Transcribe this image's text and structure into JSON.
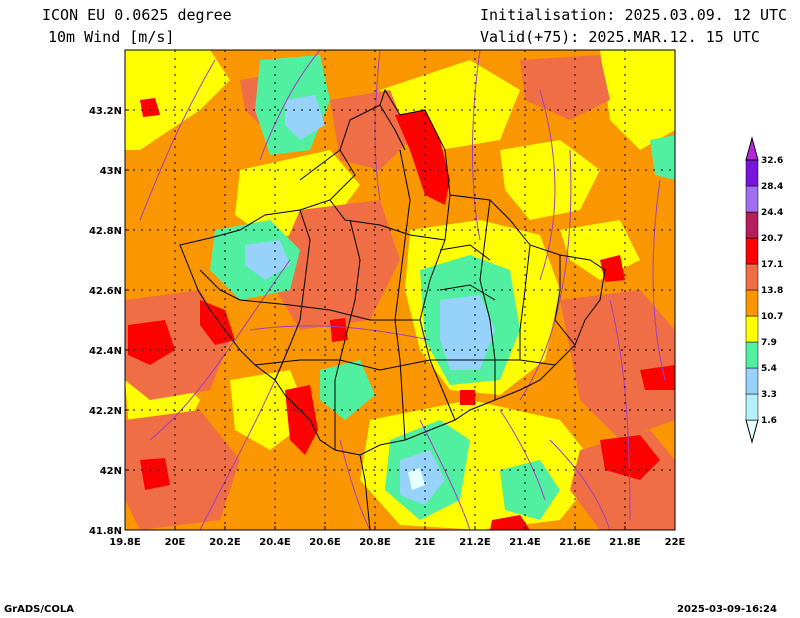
{
  "header": {
    "model": "ICON EU 0.0625 degree",
    "variable": "10m Wind [m/s]",
    "init": "Initialisation: 2025.03.09. 12 UTC",
    "valid": "Valid(+75): 2025.MAR.12. 15 UTC"
  },
  "map": {
    "lon_ticks": [
      "19.8E",
      "20E",
      "20.2E",
      "20.4E",
      "20.6E",
      "20.8E",
      "21E",
      "21.2E",
      "21.4E",
      "21.6E",
      "21.8E",
      "22E"
    ],
    "lat_ticks": [
      "43.2N",
      "43N",
      "42.8N",
      "42.6N",
      "42.4N",
      "42.2N",
      "42N",
      "41.8N"
    ],
    "lon_range": [
      19.8,
      22.0
    ],
    "lat_range": [
      41.8,
      43.4
    ]
  },
  "legend": {
    "labels": [
      "1.6",
      "3.3",
      "5.4",
      "7.9",
      "10.7",
      "13.8",
      "17.1",
      "20.7",
      "24.4",
      "28.4",
      "32.6"
    ],
    "colors": [
      "#e6ffff",
      "#b4f0fa",
      "#96d2fa",
      "#50f0a0",
      "#ffff00",
      "#fa9600",
      "#f06e46",
      "#ff0000",
      "#b41e5a",
      "#a06ef0",
      "#7814dc",
      "#b428dc"
    ]
  },
  "footer": {
    "left": "GrADS/COLA",
    "right": "2025-03-09-16:24"
  }
}
